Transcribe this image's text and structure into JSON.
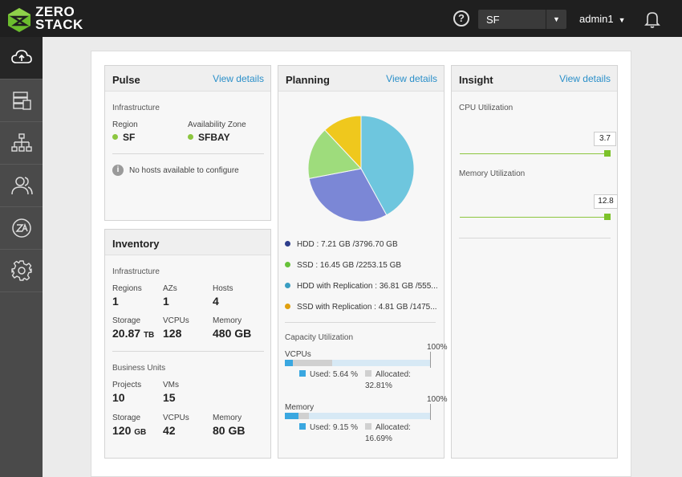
{
  "app": {
    "logo_line1": "ZERO",
    "logo_line2": "STACK"
  },
  "topbar": {
    "help_icon": "question-circle-icon",
    "region": "SF",
    "user": "admin1",
    "bell_icon": "bell-icon"
  },
  "sidebar": {
    "items": [
      {
        "name": "cloud-upload-icon",
        "active": true
      },
      {
        "name": "database-icon"
      },
      {
        "name": "network-icon"
      },
      {
        "name": "users-icon"
      },
      {
        "name": "zone-az-icon"
      },
      {
        "name": "gear-icon"
      }
    ]
  },
  "pulse": {
    "title": "Pulse",
    "link": "View details",
    "section": "Infrastructure",
    "region_label": "Region",
    "region_value": "SF",
    "az_label": "Availability Zone",
    "az_value": "SFBAY",
    "info": "No hosts available to configure"
  },
  "inventory": {
    "title": "Inventory",
    "infra_section": "Infrastructure",
    "regions_label": "Regions",
    "regions_value": "1",
    "azs_label": "AZs",
    "azs_value": "1",
    "hosts_label": "Hosts",
    "hosts_value": "4",
    "storage_label": "Storage",
    "storage_value": "20.87",
    "storage_unit": "TB",
    "vcpus_label": "VCPUs",
    "vcpus_value": "128",
    "memory_label": "Memory",
    "memory_value": "480 GB",
    "bu_section": "Business Units",
    "projects_label": "Projects",
    "projects_value": "10",
    "vms_label": "VMs",
    "vms_value": "15",
    "bu_storage_label": "Storage",
    "bu_storage_value": "120",
    "bu_storage_unit": "GB",
    "bu_vcpus_label": "VCPUs",
    "bu_vcpus_value": "42",
    "bu_memory_label": "Memory",
    "bu_memory_value": "80 GB"
  },
  "planning": {
    "title": "Planning",
    "link": "View details",
    "pie": [
      {
        "label": "HDD with Replication",
        "percent": 42,
        "color": "#6ec6de"
      },
      {
        "label": "HDD",
        "percent": 30,
        "color": "#7b87d6"
      },
      {
        "label": "SSD",
        "percent": 16,
        "color": "#9edc7c"
      },
      {
        "label": "SSD with Replication",
        "percent": 12,
        "color": "#efc81d"
      }
    ],
    "legend": [
      {
        "text": "HDD : 7.21 GB /3796.70 GB",
        "color": "#2e3e8c"
      },
      {
        "text": "SSD : 16.45 GB /2253.15 GB",
        "color": "#67c23a"
      },
      {
        "text": "HDD with Replication : 36.81 GB /555...",
        "color": "#3a9ec2"
      },
      {
        "text": "SSD with Replication : 4.81 GB /1475...",
        "color": "#e0a010"
      }
    ],
    "capacity_title": "Capacity Utilization",
    "vcpus": {
      "label": "VCPUs",
      "max": "100%",
      "used_label": "Used: 5.64 %",
      "alloc_label": "Allocated:",
      "alloc_value": "32.81%",
      "used": 5.64,
      "allocated": 32.81
    },
    "memory": {
      "label": "Memory",
      "max": "100%",
      "used_label": "Used: 9.15 %",
      "alloc_label": "Allocated:",
      "alloc_value": "16.69%",
      "used": 9.15,
      "allocated": 16.69
    }
  },
  "insight": {
    "title": "Insight",
    "link": "View details",
    "cpu_label": "CPU Utilization",
    "cpu_value": "3.7",
    "mem_label": "Memory Utilization",
    "mem_value": "12.8"
  },
  "colors": {
    "accent": "#2a8fc9",
    "green": "#8cc63f",
    "used": "#3aa7e0",
    "alloc": "#d0d0d0"
  }
}
